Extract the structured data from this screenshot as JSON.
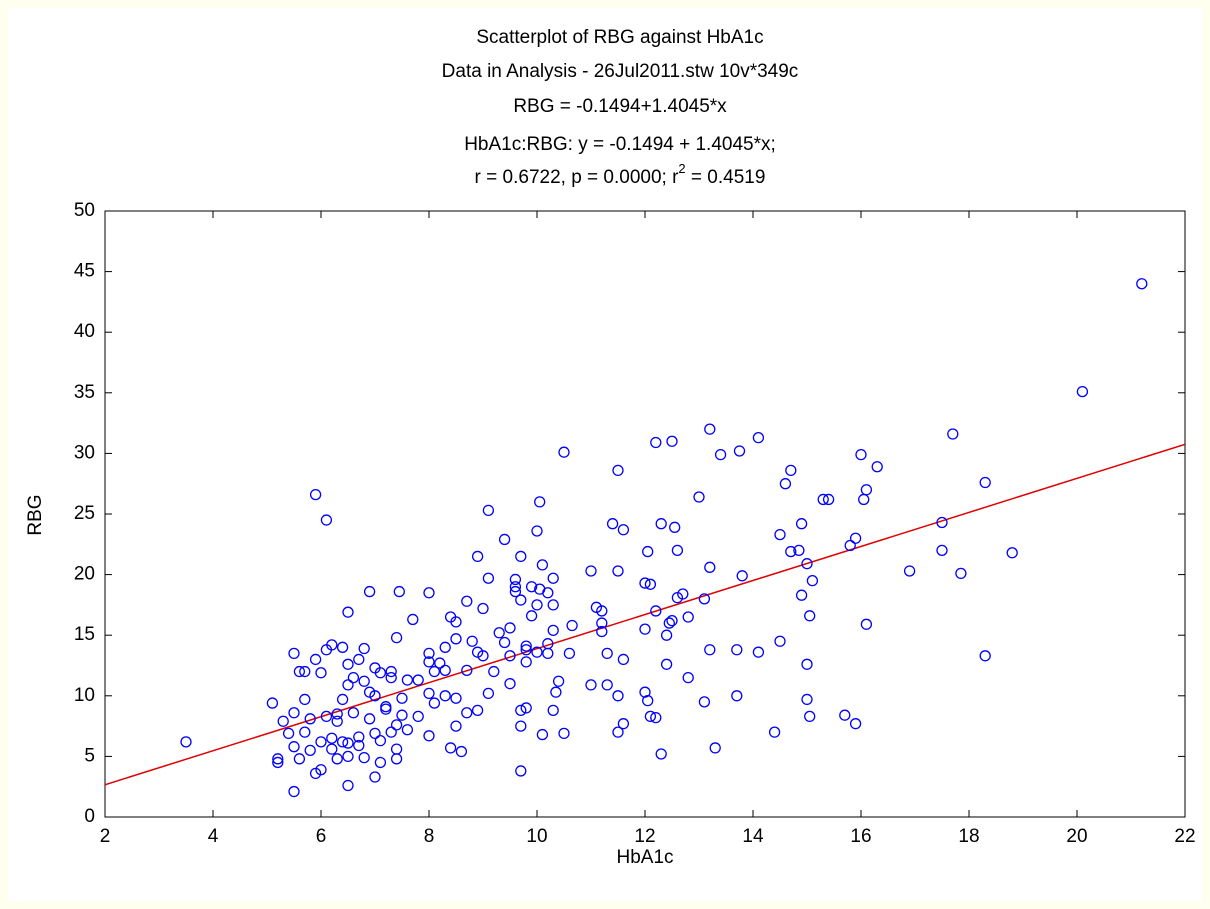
{
  "chart_data": {
    "type": "scatter",
    "title_lines": [
      "Scatterplot of RBG against HbA1c",
      "Data in Analysis - 26Jul2011.stw 10v*349c",
      "RBG = -0.1494+1.4045*x",
      "HbA1c:RBG:   y = -0.1494 + 1.4045*x;"
    ],
    "stats_line": [
      "r = 0.6722, p = 0.0000; r",
      "2",
      " = 0.4519"
    ],
    "x_label": "HbA1c",
    "y_label": "RBG",
    "xlim": [
      2,
      22
    ],
    "xticks": [
      2,
      4,
      6,
      8,
      10,
      12,
      14,
      16,
      18,
      20,
      22
    ],
    "ylim": [
      0,
      50
    ],
    "yticks": [
      0,
      5,
      10,
      15,
      20,
      25,
      30,
      35,
      40,
      45,
      50
    ],
    "point_color": "#0000ff",
    "fit": {
      "intercept": -0.1494,
      "slope": 1.4045,
      "color": "#e00000"
    },
    "x": [
      3.5,
      5.9,
      6.1,
      21.2,
      20.1,
      17.7,
      13.2,
      14.1,
      12.2,
      12.5,
      10.5,
      13.4,
      13.75,
      16,
      16.3,
      11.5,
      14.7,
      14.6,
      16.1,
      18.3,
      13,
      15.3,
      15.4,
      16.05,
      10.05,
      9.1,
      14.9,
      17.5,
      11.4,
      12.3,
      12.55,
      11.6,
      10.0,
      14.5,
      15.9,
      15.8,
      9.4,
      14.7,
      14.85,
      12.05,
      12.6,
      17.5,
      18.8,
      8.9,
      9.7,
      15.0,
      10.1,
      13.2,
      11.0,
      11.5,
      16.9,
      17.85,
      13.8,
      9.1,
      9.6,
      10.3,
      15.1,
      12.0,
      12.1,
      9.6,
      9.9,
      10.05,
      9.6,
      6.9,
      7.45,
      8.0,
      10.2,
      12.7,
      12.6,
      14.9,
      13.1,
      9.7,
      8.7,
      10.0,
      10.3,
      11.1,
      9.0,
      6.5,
      11.2,
      12.2,
      9.9,
      15.05,
      8.4,
      12.8,
      7.7,
      8.5,
      12.45,
      12.5,
      11.2,
      16.1,
      10.65,
      9.5,
      10.3,
      12.0,
      11.2,
      9.3,
      12.4,
      8.8,
      9.4,
      14.5,
      7.4,
      6.2,
      6.4,
      6.1,
      6.8,
      11.6,
      9.8,
      13.2,
      13.7,
      14.1,
      10.6,
      11.3,
      12.4,
      18.3,
      10.2,
      9.0,
      5.5,
      5.9,
      7.0,
      8.0,
      15.0,
      7.3,
      5.6,
      6.0,
      5.7,
      7.3,
      7.6,
      12.8,
      10.4,
      9.5,
      11.0,
      11.3,
      10.35,
      11.5,
      12.0,
      13.7,
      15.0,
      9.1,
      13.1,
      12.05,
      5.1,
      5.7,
      6.4,
      7.0,
      7.5,
      8.0,
      8.3,
      8.5,
      9.7,
      9.8,
      10.3,
      15.05,
      15.7,
      12.1,
      12.2,
      11.6,
      9.7,
      15.9,
      14.4,
      10.1,
      10.5,
      11.5,
      8.5,
      8.0,
      9.7,
      12.3,
      13.3,
      8.6,
      8.4,
      7.0,
      6.5,
      5.5,
      5.9,
      6.0,
      5.2,
      5.2,
      5.6,
      6.3,
      6.5,
      6.8,
      7.4,
      7.1,
      5.3,
      5.5,
      5.8,
      6.1,
      6.3,
      6.6,
      6.9,
      7.2,
      7.5,
      5.4,
      5.7,
      6.0,
      6.2,
      6.5,
      6.7,
      7.0,
      7.3,
      7.6,
      5.5,
      5.8,
      6.2,
      6.4,
      6.7,
      7.1,
      7.4,
      7.8,
      8.1,
      8.3,
      8.2,
      8.3,
      8.5,
      8.7,
      8.9,
      8.7,
      8.9,
      9.2,
      9.5,
      9.8,
      9.8,
      10.0,
      10.2,
      6.6,
      6.8,
      7.1,
      6.5,
      6.9,
      7.2,
      6.5,
      6.7,
      7.4,
      6.3,
      7.8,
      8.1,
      8.0
    ],
    "y": [
      6.2,
      26.6,
      24.5,
      44,
      35.1,
      31.6,
      32,
      31.3,
      30.9,
      31,
      30.1,
      29.9,
      30.2,
      29.9,
      28.9,
      28.6,
      28.6,
      27.5,
      27,
      27.6,
      26.4,
      26.2,
      26.2,
      26.2,
      26,
      25.3,
      24.2,
      24.3,
      24.2,
      24.2,
      23.9,
      23.7,
      23.6,
      23.3,
      23,
      22.4,
      22.9,
      21.9,
      22,
      21.9,
      22,
      22,
      21.8,
      21.5,
      21.5,
      20.9,
      20.8,
      20.6,
      20.3,
      20.3,
      20.3,
      20.1,
      19.9,
      19.7,
      19.6,
      19.7,
      19.5,
      19.3,
      19.2,
      19,
      19,
      18.8,
      18.6,
      18.6,
      18.6,
      18.5,
      18.5,
      18.4,
      18.1,
      18.3,
      18,
      17.9,
      17.8,
      17.5,
      17.5,
      17.3,
      17.2,
      16.9,
      17,
      17,
      16.6,
      16.6,
      16.5,
      16.5,
      16.3,
      16.1,
      16,
      16.2,
      16,
      15.9,
      15.8,
      15.6,
      15.4,
      15.5,
      15.3,
      15.2,
      15,
      14.5,
      14.4,
      14.5,
      14.8,
      14.2,
      14,
      13.8,
      13.9,
      13,
      13.8,
      13.8,
      13.8,
      13.6,
      13.5,
      13.5,
      12.6,
      13.3,
      13.5,
      13.3,
      13.5,
      13,
      12.3,
      12.8,
      12.6,
      12,
      12,
      11.9,
      12,
      11.5,
      11.3,
      11.5,
      11.2,
      11,
      10.9,
      10.9,
      10.3,
      10.0,
      10.3,
      10.0,
      9.7,
      10.2,
      9.5,
      9.6,
      9.4,
      9.7,
      9.7,
      10.0,
      9.8,
      10.2,
      10.0,
      9.8,
      8.8,
      9.0,
      8.8,
      8.3,
      8.4,
      8.3,
      8.2,
      7.7,
      7.5,
      7.7,
      7.0,
      6.8,
      6.9,
      7.0,
      7.5,
      6.7,
      3.8,
      5.2,
      5.7,
      5.4,
      5.7,
      3.3,
      2.6,
      2.1,
      3.6,
      3.9,
      4.5,
      4.8,
      4.8,
      4.8,
      5.0,
      4.9,
      4.8,
      4.5,
      7.9,
      8.6,
      8.1,
      8.3,
      8.5,
      8.6,
      8.1,
      8.9,
      8.4,
      6.9,
      7.0,
      6.2,
      6.5,
      6.1,
      6.6,
      6.9,
      7.0,
      7.2,
      5.8,
      5.5,
      5.6,
      6.2,
      5.9,
      6.3,
      5.6,
      8.3,
      9.4,
      12.1,
      12.7,
      14,
      14.7,
      12.1,
      13.6,
      8.6,
      8.8,
      12.0,
      13.3,
      14.1,
      12.8,
      13.6,
      14.3,
      11.5,
      11.2,
      11.9,
      10.9,
      10.3,
      9.1,
      12.6,
      13.0,
      7.6,
      7.9,
      11.3,
      12.0,
      13.5
    ]
  }
}
